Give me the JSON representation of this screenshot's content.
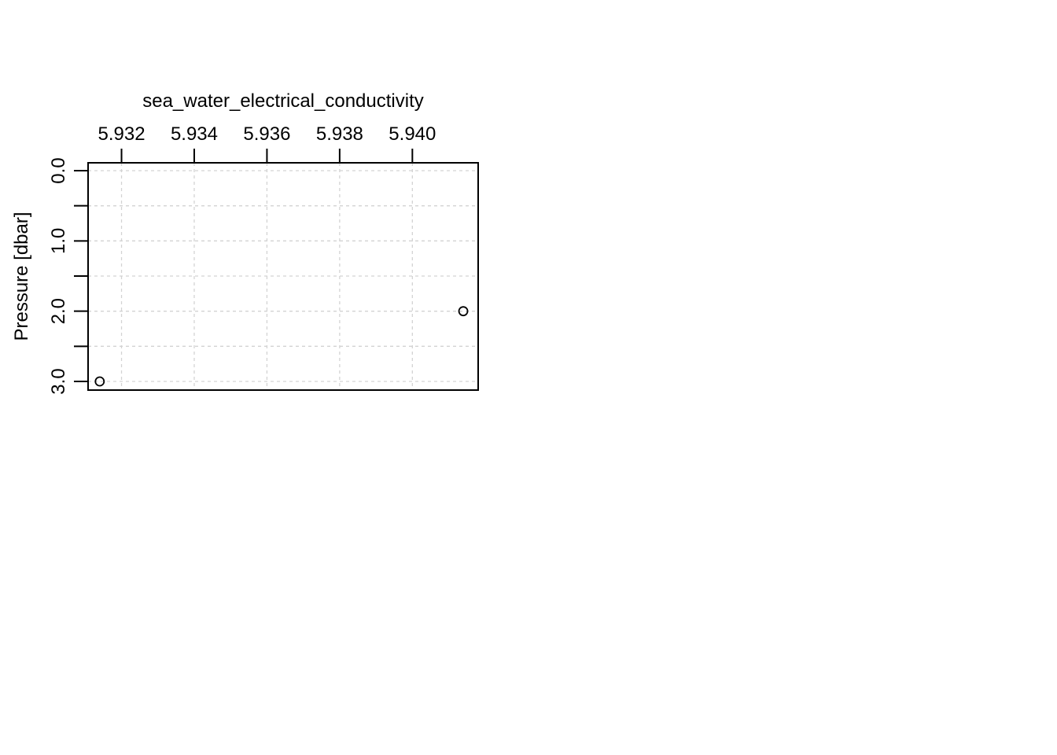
{
  "chart_data": {
    "type": "scatter",
    "xlabel": "sea_water_electrical_conductivity",
    "ylabel": "Pressure [dbar]",
    "x_axis_position": "top",
    "y_axis_reversed": true,
    "xlim": [
      5.93108,
      5.94181
    ],
    "ylim": [
      0.0,
      3.1
    ],
    "x_ticks": [
      5.932,
      5.934,
      5.936,
      5.938,
      5.94
    ],
    "x_tick_labels": [
      "5.932",
      "5.934",
      "5.936",
      "5.938",
      "5.940"
    ],
    "y_ticks": [
      0.0,
      0.5,
      1.0,
      1.5,
      2.0,
      2.5,
      3.0
    ],
    "y_tick_labels": [
      "0.0",
      "",
      "1.0",
      "",
      "2.0",
      "",
      "3.0"
    ],
    "grid": true,
    "marker": "open-circle",
    "points": [
      {
        "x": 5.9314,
        "y": 3.0
      },
      {
        "x": 5.9414,
        "y": 2.0
      }
    ],
    "colors": {
      "axis": "#000000",
      "grid": "#d3d3d3",
      "marker": "#000000"
    }
  }
}
